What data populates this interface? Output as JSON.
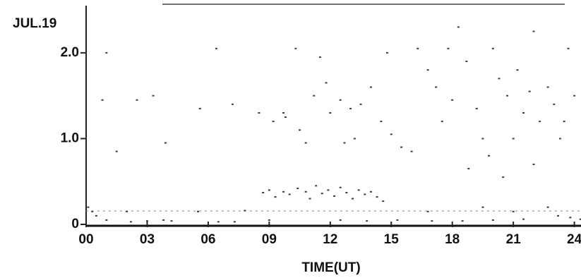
{
  "chart_data": {
    "type": "scatter",
    "title": "JUL.19",
    "x_label": "TIME(UT)",
    "color": "#3a3a3a",
    "xlim": [
      0,
      24.5
    ],
    "ylim": [
      0,
      2.55
    ],
    "xticks": [
      {
        "value": 0,
        "label": "00"
      },
      {
        "value": 3,
        "label": "03"
      },
      {
        "value": 6,
        "label": "06"
      },
      {
        "value": 9,
        "label": "09"
      },
      12,
      15,
      18,
      21,
      24
    ],
    "yticks": [
      0,
      {
        "value": 1,
        "label": "1.0"
      },
      {
        "value": 2,
        "label": "2.0"
      }
    ],
    "x": [
      0.8,
      1.0,
      2.5,
      3.3,
      5.6,
      3.9,
      1.5,
      6.4,
      7.2,
      8.5,
      9.2,
      9.7,
      10.3,
      10.5,
      11.2,
      11.8,
      12.0,
      12.5,
      13.0,
      13.5,
      13.2,
      12.7,
      14.0,
      14.5,
      15.0,
      15.5,
      16.3,
      16.8,
      17.2,
      17.5,
      18.0,
      18.3,
      18.7,
      19.2,
      19.5,
      19.8,
      20.3,
      20.7,
      21.2,
      21.5,
      21.8,
      22.0,
      22.3,
      22.7,
      23.0,
      23.3,
      23.7,
      24.0,
      22.0,
      20.0,
      17.8,
      14.8,
      11.5,
      9.8,
      10.8,
      16.0,
      18.8,
      21.0,
      23.5,
      20.5,
      8.7,
      9.0,
      9.3,
      9.7,
      10.0,
      10.4,
      10.8,
      11.0,
      11.3,
      11.6,
      11.9,
      12.2,
      12.5,
      12.8,
      13.1,
      13.4,
      13.7,
      14.0,
      14.3,
      14.6,
      0.1,
      0.3,
      0.5,
      1.0,
      2.2,
      3.0,
      3.8,
      4.2,
      6.5,
      7.3,
      9.0,
      12.5,
      13.8,
      15.3,
      17.0,
      18.5,
      20.0,
      21.5,
      22.7,
      23.2,
      23.8,
      24.3,
      16.8,
      19.5,
      21.0,
      5.5,
      2.0,
      7.8
    ],
    "y": [
      1.45,
      2.0,
      1.45,
      1.5,
      1.35,
      0.95,
      0.85,
      2.05,
      1.4,
      1.3,
      1.2,
      1.3,
      2.05,
      1.1,
      1.5,
      1.65,
      1.3,
      1.45,
      1.35,
      1.4,
      1.0,
      0.95,
      1.6,
      1.2,
      1.05,
      0.9,
      2.05,
      1.8,
      1.6,
      1.2,
      1.45,
      2.3,
      1.9,
      1.35,
      1.0,
      0.8,
      1.7,
      1.5,
      1.8,
      1.3,
      1.55,
      0.7,
      1.2,
      1.6,
      1.4,
      1.0,
      2.05,
      1.5,
      2.25,
      2.05,
      2.05,
      2.0,
      1.95,
      1.25,
      0.95,
      0.85,
      0.65,
      1.0,
      1.2,
      0.55,
      0.37,
      0.4,
      0.32,
      0.38,
      0.35,
      0.42,
      0.38,
      0.3,
      0.45,
      0.36,
      0.4,
      0.33,
      0.43,
      0.37,
      0.3,
      0.4,
      0.35,
      0.38,
      0.32,
      0.27,
      0.2,
      0.15,
      0.1,
      0.05,
      0.03,
      0.04,
      0.05,
      0.04,
      0.03,
      0.03,
      0.05,
      0.05,
      0.04,
      0.05,
      0.04,
      0.04,
      0.05,
      0.06,
      0.2,
      0.1,
      0.08,
      0.06,
      0.15,
      0.2,
      0.15,
      0.15,
      0.15,
      0.16
    ]
  }
}
